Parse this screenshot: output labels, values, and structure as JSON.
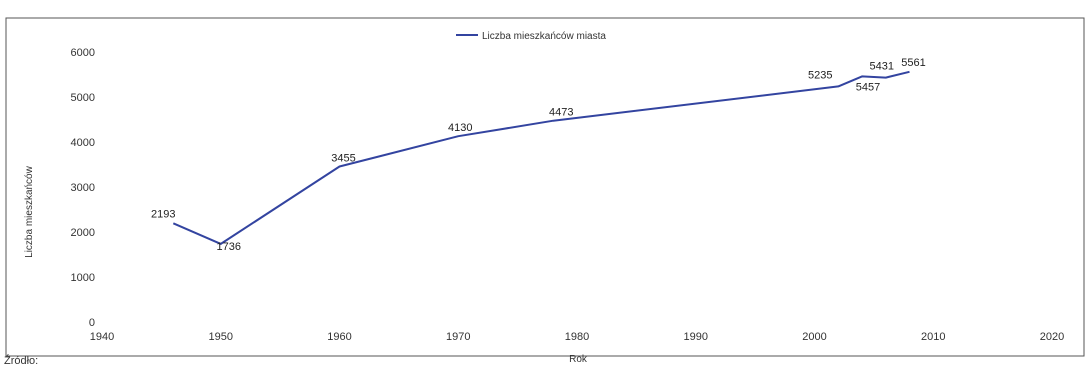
{
  "chart_data": {
    "type": "line",
    "title": "",
    "xlabel": "Rok",
    "ylabel": "Liczba mieszkańców",
    "xlim": [
      1940,
      2020
    ],
    "ylim": [
      0,
      6000
    ],
    "x_ticks": [
      1940,
      1950,
      1960,
      1970,
      1980,
      1990,
      2000,
      2010,
      2020
    ],
    "y_ticks": [
      0,
      1000,
      2000,
      3000,
      4000,
      5000,
      6000
    ],
    "grid": false,
    "legend": "top-center",
    "series": [
      {
        "name": "Liczba mieszkańców miasta",
        "color": "#3344a0",
        "x": [
          1946,
          1950,
          1960,
          1970,
          1978,
          2002,
          2004,
          2006,
          2008
        ],
        "y": [
          2193,
          1736,
          3455,
          4130,
          4473,
          5235,
          5457,
          5431,
          5561
        ],
        "labels": [
          "2193",
          "1736",
          "3455",
          "4130",
          "4473",
          "5235",
          "5457",
          "5431",
          "5561"
        ]
      }
    ]
  },
  "footer": {
    "source_label": "Źródło:"
  }
}
